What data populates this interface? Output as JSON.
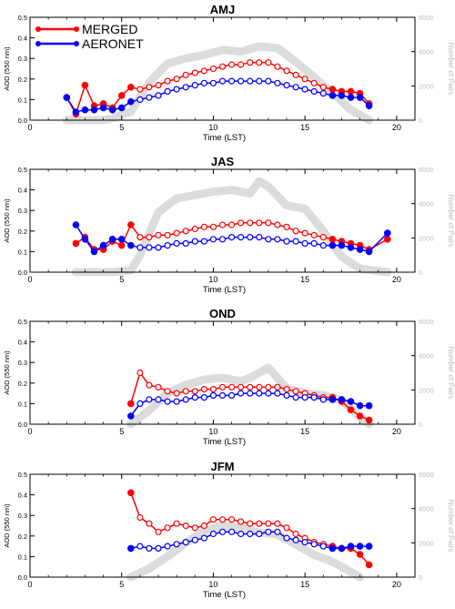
{
  "colors": {
    "merged": "#ff0000",
    "aeronet": "#0000ff",
    "pairs": "#dcdcdc",
    "right_axis": "#bbbbbb"
  },
  "legend": {
    "placement": "top-left",
    "entries": [
      "MERGED",
      "AERONET"
    ]
  },
  "chart_data": [
    {
      "type": "line",
      "title": "AMJ",
      "xlabel": "Time (LST)",
      "ylabel": "AOD (550 nm)",
      "ylabel_right": "Number of Pairs",
      "xlim": [
        0,
        21
      ],
      "ylim": [
        0,
        0.5
      ],
      "ylim_right": [
        0,
        6000
      ],
      "xticks": [
        "0",
        "5",
        "10",
        "15",
        "20"
      ],
      "yticks": [
        "0.0",
        "0.1",
        "0.2",
        "0.3",
        "0.4",
        "0.5"
      ],
      "yticks_right": [
        "0",
        "2000",
        "4000",
        "6000"
      ],
      "pairs": {
        "x": [
          2,
          3,
          4,
          4.5,
          5.5,
          6.5,
          7.5,
          8.5,
          9.5,
          10.5,
          11.5,
          12.5,
          13.5,
          14.5,
          15.5,
          16.5,
          17.5,
          18.5
        ],
        "y": [
          0,
          0,
          0,
          100,
          500,
          2200,
          3300,
          3600,
          3800,
          4100,
          4000,
          4300,
          4200,
          3400,
          2500,
          1600,
          600,
          0
        ]
      },
      "series": [
        {
          "name": "MERGED",
          "x": [
            2,
            2.5,
            3,
            3.5,
            4,
            4.5,
            5,
            5.5,
            6,
            6.5,
            7,
            7.5,
            8,
            8.5,
            9,
            9.5,
            10,
            10.5,
            11,
            11.5,
            12,
            12.5,
            13,
            13.5,
            14,
            14.5,
            15,
            15.5,
            16,
            16.5,
            17,
            17.5,
            18,
            18.5
          ],
          "values": [
            0.11,
            0.03,
            0.17,
            0.07,
            0.08,
            0.06,
            0.12,
            0.16,
            0.15,
            0.16,
            0.17,
            0.19,
            0.2,
            0.22,
            0.23,
            0.24,
            0.25,
            0.26,
            0.27,
            0.27,
            0.28,
            0.28,
            0.28,
            0.26,
            0.24,
            0.22,
            0.2,
            0.18,
            0.16,
            0.15,
            0.14,
            0.14,
            0.13,
            0.08
          ]
        },
        {
          "name": "AERONET",
          "x": [
            2,
            2.5,
            3,
            3.5,
            4,
            4.5,
            5,
            5.5,
            6,
            6.5,
            7,
            7.5,
            8,
            8.5,
            9,
            9.5,
            10,
            10.5,
            11,
            11.5,
            12,
            12.5,
            13,
            13.5,
            14,
            14.5,
            15,
            15.5,
            16,
            16.5,
            17,
            17.5,
            18,
            18.5
          ],
          "values": [
            0.11,
            0.04,
            0.05,
            0.05,
            0.06,
            0.05,
            0.06,
            0.09,
            0.1,
            0.11,
            0.12,
            0.14,
            0.15,
            0.16,
            0.17,
            0.18,
            0.18,
            0.19,
            0.19,
            0.19,
            0.19,
            0.19,
            0.19,
            0.18,
            0.17,
            0.16,
            0.15,
            0.14,
            0.13,
            0.12,
            0.12,
            0.11,
            0.11,
            0.07
          ]
        }
      ]
    },
    {
      "type": "line",
      "title": "JAS",
      "xlabel": "Time (LST)",
      "ylabel": "AOD (550 nm)",
      "ylabel_right": "Number of Pairs",
      "xlim": [
        0,
        21
      ],
      "ylim": [
        0,
        0.5
      ],
      "ylim_right": [
        0,
        6000
      ],
      "xticks": [
        "0",
        "5",
        "10",
        "15",
        "20"
      ],
      "yticks": [
        "0.0",
        "0.1",
        "0.2",
        "0.3",
        "0.4",
        "0.5"
      ],
      "yticks_right": [
        "0",
        "2000",
        "4000",
        "6000"
      ],
      "pairs": {
        "x": [
          2.5,
          3.5,
          4.5,
          5.5,
          6,
          7,
          8,
          9,
          10,
          11,
          12,
          12.5,
          13,
          14,
          15,
          16,
          17,
          18,
          19.5
        ],
        "y": [
          0,
          0,
          0,
          100,
          1000,
          3500,
          4300,
          4500,
          4700,
          4800,
          4600,
          5300,
          5000,
          3900,
          3700,
          2400,
          900,
          200,
          0
        ]
      },
      "series": [
        {
          "name": "MERGED",
          "x": [
            2.5,
            3,
            3.5,
            4,
            4.5,
            5,
            5.5,
            6,
            6.5,
            7,
            7.5,
            8,
            8.5,
            9,
            9.5,
            10,
            10.5,
            11,
            11.5,
            12,
            12.5,
            13,
            13.5,
            14,
            14.5,
            15,
            15.5,
            16,
            16.5,
            17,
            17.5,
            18,
            18.5,
            19.5
          ],
          "values": [
            0.14,
            0.17,
            0.11,
            0.11,
            0.15,
            0.13,
            0.23,
            0.17,
            0.17,
            0.18,
            0.18,
            0.19,
            0.2,
            0.21,
            0.22,
            0.22,
            0.23,
            0.23,
            0.24,
            0.24,
            0.24,
            0.24,
            0.23,
            0.22,
            0.2,
            0.19,
            0.18,
            0.17,
            0.16,
            0.15,
            0.14,
            0.13,
            0.11,
            0.16
          ]
        },
        {
          "name": "AERONET",
          "x": [
            2.5,
            3,
            3.5,
            4,
            4.5,
            5,
            5.5,
            6,
            6.5,
            7,
            7.5,
            8,
            8.5,
            9,
            9.5,
            10,
            10.5,
            11,
            11.5,
            12,
            12.5,
            13,
            13.5,
            14,
            14.5,
            15,
            15.5,
            16,
            16.5,
            17,
            17.5,
            18,
            18.5,
            19.5
          ],
          "values": [
            0.23,
            0.16,
            0.1,
            0.13,
            0.16,
            0.16,
            0.13,
            0.12,
            0.12,
            0.12,
            0.13,
            0.14,
            0.14,
            0.15,
            0.15,
            0.16,
            0.16,
            0.17,
            0.17,
            0.17,
            0.17,
            0.16,
            0.16,
            0.15,
            0.15,
            0.14,
            0.14,
            0.13,
            0.13,
            0.13,
            0.12,
            0.11,
            0.1,
            0.19
          ]
        }
      ]
    },
    {
      "type": "line",
      "title": "OND",
      "xlabel": "Time (LST)",
      "ylabel": "AOD (550 nm)",
      "ylabel_right": "Number of Pairs",
      "xlim": [
        0,
        21
      ],
      "ylim": [
        0,
        0.5
      ],
      "ylim_right": [
        0,
        6000
      ],
      "xticks": [
        "0",
        "5",
        "10",
        "15",
        "20"
      ],
      "yticks": [
        "0.0",
        "0.1",
        "0.2",
        "0.3",
        "0.4",
        "0.5"
      ],
      "yticks_right": [
        "0",
        "2000",
        "4000",
        "6000"
      ],
      "pairs": {
        "x": [
          5.5,
          6.5,
          7.5,
          8.5,
          9.5,
          10.5,
          11.5,
          12,
          13,
          14,
          15,
          16,
          17,
          17.5,
          18,
          18.5
        ],
        "y": [
          0,
          800,
          1800,
          2300,
          2600,
          2700,
          2500,
          2700,
          3300,
          2100,
          1800,
          1700,
          1400,
          900,
          400,
          0
        ]
      },
      "series": [
        {
          "name": "MERGED",
          "x": [
            5.5,
            6,
            6.5,
            7,
            7.5,
            8,
            8.5,
            9,
            9.5,
            10,
            10.5,
            11,
            11.5,
            12,
            12.5,
            13,
            13.5,
            14,
            14.5,
            15,
            15.5,
            16,
            16.5,
            17,
            17.5,
            18,
            18.5
          ],
          "values": [
            0.1,
            0.25,
            0.19,
            0.18,
            0.16,
            0.15,
            0.16,
            0.16,
            0.17,
            0.17,
            0.18,
            0.18,
            0.18,
            0.18,
            0.18,
            0.18,
            0.18,
            0.17,
            0.16,
            0.15,
            0.14,
            0.13,
            0.13,
            0.11,
            0.07,
            0.04,
            0.02
          ]
        },
        {
          "name": "AERONET",
          "x": [
            5.5,
            6,
            6.5,
            7,
            7.5,
            8,
            8.5,
            9,
            9.5,
            10,
            10.5,
            11,
            11.5,
            12,
            12.5,
            13,
            13.5,
            14,
            14.5,
            15,
            15.5,
            16,
            16.5,
            17,
            17.5,
            18,
            18.5
          ],
          "values": [
            0.04,
            0.1,
            0.12,
            0.12,
            0.11,
            0.11,
            0.12,
            0.13,
            0.13,
            0.14,
            0.14,
            0.14,
            0.15,
            0.15,
            0.15,
            0.15,
            0.15,
            0.14,
            0.13,
            0.13,
            0.13,
            0.12,
            0.12,
            0.12,
            0.11,
            0.09,
            0.09
          ]
        }
      ]
    },
    {
      "type": "line",
      "title": "JFM",
      "xlabel": "Time (LST)",
      "ylabel": "AOD (550 nm)",
      "ylabel_right": "Number of Pairs",
      "xlim": [
        0,
        21
      ],
      "ylim": [
        0,
        0.5
      ],
      "ylim_right": [
        0,
        6000
      ],
      "xticks": [
        "0",
        "5",
        "10",
        "15",
        "20"
      ],
      "yticks": [
        "0.0",
        "0.1",
        "0.2",
        "0.3",
        "0.4",
        "0.5"
      ],
      "yticks_right": [
        "0",
        "2000",
        "4000",
        "6000"
      ],
      "pairs": {
        "x": [
          5.5,
          6.5,
          7.5,
          8.5,
          9.5,
          10.5,
          11.5,
          12.5,
          13.5,
          14.5,
          15.5,
          16.5,
          17.5,
          18
        ],
        "y": [
          0,
          500,
          1200,
          2000,
          2700,
          3000,
          2900,
          2600,
          2500,
          1900,
          1300,
          900,
          300,
          0
        ]
      },
      "series": [
        {
          "name": "MERGED",
          "x": [
            5.5,
            6,
            6.5,
            7,
            7.5,
            8,
            8.5,
            9,
            9.5,
            10,
            10.5,
            11,
            11.5,
            12,
            12.5,
            13,
            13.5,
            14,
            14.5,
            15,
            15.5,
            16,
            16.5,
            17,
            17.5,
            18,
            18.5
          ],
          "values": [
            0.41,
            0.29,
            0.26,
            0.22,
            0.24,
            0.26,
            0.25,
            0.24,
            0.25,
            0.28,
            0.28,
            0.28,
            0.27,
            0.26,
            0.26,
            0.26,
            0.26,
            0.24,
            0.21,
            0.19,
            0.17,
            0.16,
            0.15,
            0.14,
            0.14,
            0.11,
            0.06
          ]
        },
        {
          "name": "AERONET",
          "x": [
            5.5,
            6,
            6.5,
            7,
            7.5,
            8,
            8.5,
            9,
            9.5,
            10,
            10.5,
            11,
            11.5,
            12,
            12.5,
            13,
            13.5,
            14,
            14.5,
            15,
            15.5,
            16,
            16.5,
            17,
            17.5,
            18,
            18.5
          ],
          "values": [
            0.14,
            0.15,
            0.14,
            0.14,
            0.15,
            0.16,
            0.17,
            0.18,
            0.19,
            0.21,
            0.22,
            0.22,
            0.21,
            0.21,
            0.21,
            0.22,
            0.22,
            0.19,
            0.18,
            0.17,
            0.16,
            0.15,
            0.14,
            0.14,
            0.15,
            0.15,
            0.15
          ]
        }
      ]
    }
  ]
}
